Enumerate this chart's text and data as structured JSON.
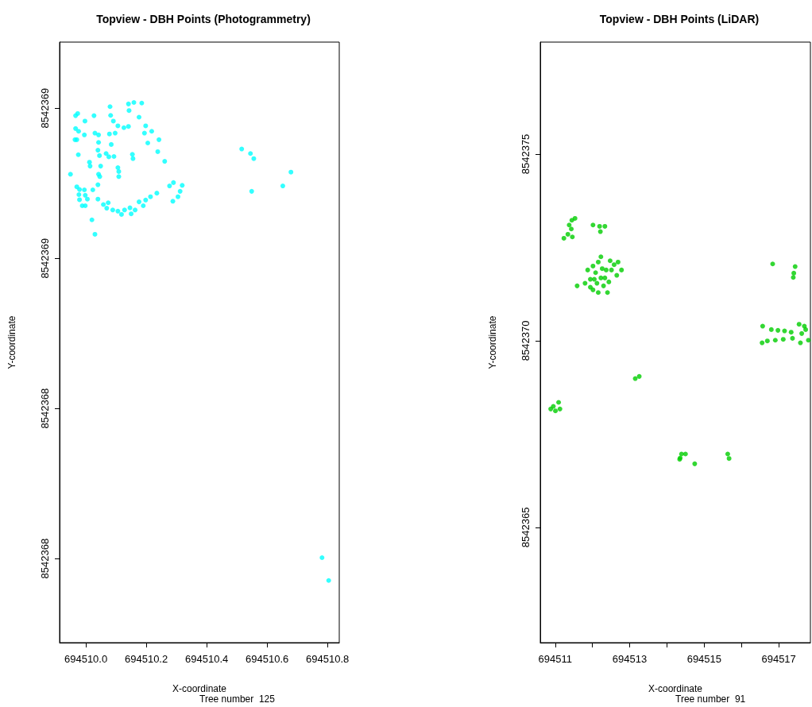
{
  "chart_data": [
    {
      "type": "scatter",
      "title": "Topview - DBH Points (Photogrammetry)",
      "xlabel": "X-coordinate",
      "ylabel": "Y-coordinate",
      "annotations": [
        "Tree number  125"
      ],
      "marker": "circle",
      "color": "#00ffff",
      "xlim": [
        694509.913,
        694510.839
      ],
      "xticks": [
        {
          "value": 694510,
          "label": "694510.0"
        },
        694510.2,
        694510.4,
        694510.6,
        694510.8
      ],
      "ylim": [
        8542367.72,
        8542369.72
      ],
      "yticks": [
        {
          "value": 8542368,
          "label": "8542368"
        },
        {
          "value": 8542368.5,
          "label": "8542368"
        },
        {
          "value": 8542369,
          "label": "8542369"
        },
        {
          "value": 8542369.5,
          "label": "8542369"
        }
      ],
      "x": [
        694509.949,
        694509.966,
        694509.973,
        694509.997,
        694510.027,
        694509.966,
        694509.976,
        694509.995,
        694509.964,
        694509.97,
        694509.975,
        694510.012,
        694510.014,
        694510.03,
        694510.042,
        694510.042,
        694510.04,
        694510.045,
        694510.049,
        694510.042,
        694510.046,
        694510.04,
        694510.023,
        694509.97,
        694509.979,
        694509.995,
        694509.977,
        694509.998,
        694509.979,
        694510.005,
        694509.988,
        694509.998,
        694510.04,
        694510.02,
        694510.03,
        694510.058,
        694510.074,
        694510.069,
        694510.089,
        694510.106,
        694510.118,
        694510.128,
        694510.146,
        694510.15,
        694510.163,
        694510.176,
        694510.19,
        694510.198,
        694510.214,
        694510.235,
        694510.288,
        694510.305,
        694510.312,
        694510.277,
        694510.29,
        694510.319,
        694510.08,
        694510.082,
        694510.091,
        694510.106,
        694510.126,
        694510.141,
        694510.078,
        694510.097,
        694510.084,
        694510.067,
        694510.093,
        694510.076,
        694510.106,
        694510.109,
        694510.109,
        694510.143,
        694510.141,
        694510.159,
        694510.185,
        694510.176,
        694510.198,
        694510.194,
        694510.218,
        694510.205,
        694510.242,
        694510.238,
        694510.154,
        694510.156,
        694510.261,
        694510.516,
        694510.545,
        694510.556,
        694510.549,
        694510.652,
        694510.679,
        694510.782,
        694510.804
      ],
      "values": [
        8542369.28,
        8542369.475,
        8542369.482,
        8542369.457,
        8542369.475,
        8542369.432,
        8542369.423,
        8542369.411,
        8542369.395,
        8542369.395,
        8542369.345,
        8542369.32,
        8542369.307,
        8542369.417,
        8542369.411,
        8542369.386,
        8542369.36,
        8542369.342,
        8542369.307,
        8542369.28,
        8542369.272,
        8542369.245,
        8542369.228,
        8542369.238,
        8542369.229,
        8542369.228,
        8542369.212,
        8542369.21,
        8542369.195,
        8542369.197,
        8542369.175,
        8542369.175,
        8542369.197,
        8542369.128,
        8542369.08,
        8542369.179,
        8542369.185,
        8542369.167,
        8542369.161,
        8542369.157,
        8542369.146,
        8542369.161,
        8542369.168,
        8542369.148,
        8542369.161,
        8542369.188,
        8542369.175,
        8542369.194,
        8542369.205,
        8542369.217,
        8542369.19,
        8542369.205,
        8542369.223,
        8542369.241,
        8542369.252,
        8542369.243,
        8542369.505,
        8542369.476,
        8542369.457,
        8542369.441,
        8542369.435,
        8542369.439,
        8542369.414,
        8542369.417,
        8542369.379,
        8542369.349,
        8542369.339,
        8542369.338,
        8542369.302,
        8542369.289,
        8542369.272,
        8542369.492,
        8542369.514,
        8542369.519,
        8542369.517,
        8542369.47,
        8542369.441,
        8542369.417,
        8542369.423,
        8542369.384,
        8542369.395,
        8542369.355,
        8542369.346,
        8542369.332,
        8542369.323,
        8542369.364,
        8542369.349,
        8542369.332,
        8542369.223,
        8542369.241,
        8542369.287,
        8542368.003,
        8542367.927
      ]
    },
    {
      "type": "scatter",
      "title": "Topview - DBH Points (LiDAR)",
      "xlabel": "X-coordinate",
      "ylabel": "Y-coordinate",
      "annotations": [
        "Tree number  91"
      ],
      "marker": "circle",
      "color": "#00cd00",
      "xlim": [
        694510.6,
        694517.85
      ],
      "xticks": [
        694511,
        {
          "value": 694512,
          "label": null
        },
        694513,
        {
          "value": 694514,
          "label": null
        },
        694515,
        {
          "value": 694516,
          "label": null
        },
        694517
      ],
      "ylim": [
        8542361.91,
        8542378
      ],
      "yticks": [
        8542365,
        8542370,
        8542375
      ],
      "x": [
        694511.234,
        694511.341,
        694511.433,
        694511.376,
        694511.447,
        694511.532,
        694511.461,
        694512.015,
        694512.192,
        694512.334,
        694512.213,
        694511.589,
        694511.802,
        694511.944,
        694512.015,
        694512.156,
        694512.227,
        694512.369,
        694512.475,
        694512.688,
        694512.78,
        694512.653,
        694512.44,
        694512.404,
        694512.156,
        694511.944,
        694512.085,
        694512.227,
        694512.298,
        694512.511,
        694512.015,
        694511.873,
        694512.121,
        694512.262,
        694512.582,
        694512.05,
        694512.334,
        694516.837,
        694517.44,
        694517.404,
        694517.39,
        694516.568,
        694516.553,
        694516.695,
        694516.801,
        694516.979,
        694517.156,
        694517.333,
        694516.908,
        694517.121,
        694517.369,
        694517.546,
        694517.688,
        694517.617,
        694517.582,
        694517.795,
        694517.723,
        694510.951,
        694511.092,
        694511.128,
        694510.88,
        694511.007,
        694513.149,
        694513.256,
        694514.355,
        694514.497,
        694514.39,
        694514.341,
        694514.745,
        694515.631,
        694515.667
      ],
      "values": [
        8542372.745,
        8542372.851,
        8542372.993,
        8542373.1,
        8542373.227,
        8542373.277,
        8542372.78,
        8542373.1,
        8542373.064,
        8542373.064,
        8542372.922,
        8542371.469,
        8542371.54,
        8542371.433,
        8542372,
        8542372.106,
        8542372.248,
        8542371.894,
        8542372.142,
        8542372.106,
        8542371.894,
        8542371.752,
        8542371.575,
        8542371.291,
        8542371.291,
        8542371.646,
        8542371.823,
        8542371.681,
        8542371.469,
        8542371.894,
        8542371.362,
        8542371.894,
        8542371.54,
        8542371.93,
        8542372.036,
        8542371.646,
        8542371.681,
        8542372.057,
        8542371.986,
        8542371.809,
        8542371.695,
        8542370.39,
        8542369.943,
        8542369.993,
        8542370.298,
        8542370.277,
        8542370.263,
        8542370.227,
        8542370.014,
        8542370.036,
        8542370.064,
        8542370.44,
        8542370.39,
        8542370.192,
        8542369.943,
        8542370.014,
        8542370.298,
        8542368.241,
        8542368.348,
        8542368.17,
        8542368.17,
        8542368.121,
        8542368.986,
        8542369.043,
        8542366.858,
        8542366.965,
        8542366.965,
        8542366.823,
        8542366.702,
        8542366.965,
        8542366.844
      ]
    }
  ]
}
